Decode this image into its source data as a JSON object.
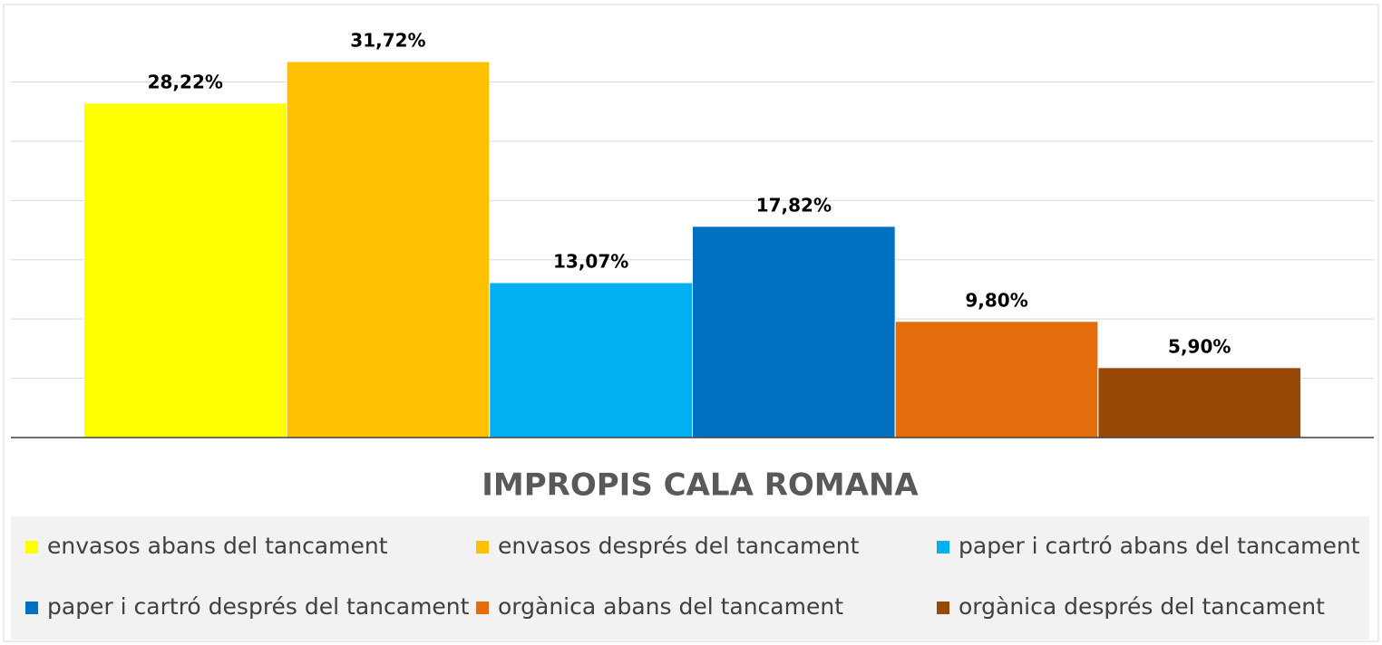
{
  "chart_data": {
    "type": "bar",
    "title": "IMPROPIS CALA ROMANA",
    "categories": [
      null
    ],
    "series": [
      {
        "name": "envasos abans del tancament",
        "color": "#ffff00",
        "values": [
          28.22
        ],
        "value_labels": [
          "28,22%"
        ]
      },
      {
        "name": "envasos després del tancament",
        "color": "#ffc000",
        "values": [
          31.72
        ],
        "value_labels": [
          "31,72%"
        ]
      },
      {
        "name": "paper i cartró abans del tancament",
        "color": "#00b0f0",
        "values": [
          13.07
        ],
        "value_labels": [
          "13,07%"
        ]
      },
      {
        "name": "paper i cartró després del tancament",
        "color": "#0070c0",
        "values": [
          17.82
        ],
        "value_labels": [
          "17,82%"
        ]
      },
      {
        "name": "orgànica abans del tancament",
        "color": "#e46c0a",
        "values": [
          9.8
        ],
        "value_labels": [
          "9,80%"
        ]
      },
      {
        "name": "orgànica després del tancament",
        "color": "#984807",
        "values": [
          5.9
        ],
        "value_labels": [
          "5,90%"
        ]
      }
    ],
    "ylim": [
      0,
      36
    ],
    "yticks": [
      0,
      5,
      10,
      15,
      20,
      25,
      30
    ],
    "grid": true,
    "legend": "bottom"
  }
}
